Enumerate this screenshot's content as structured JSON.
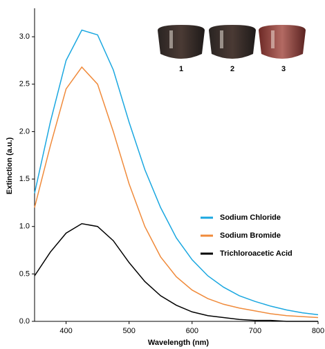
{
  "chart_data": {
    "type": "line",
    "xlabel": "Wavelength (nm)",
    "ylabel": "Extinction (a.u.)",
    "x": [
      350,
      375,
      400,
      425,
      450,
      475,
      500,
      525,
      550,
      575,
      600,
      625,
      650,
      675,
      700,
      725,
      750,
      775,
      800
    ],
    "series": [
      {
        "name": "Sodium Chloride",
        "color": "#1aa7e0",
        "values": [
          1.35,
          2.1,
          2.75,
          3.07,
          3.02,
          2.65,
          2.1,
          1.6,
          1.2,
          0.88,
          0.65,
          0.48,
          0.36,
          0.27,
          0.21,
          0.16,
          0.12,
          0.09,
          0.07
        ]
      },
      {
        "name": "Sodium Bromide",
        "color": "#f08a3a",
        "values": [
          1.2,
          1.85,
          2.45,
          2.68,
          2.5,
          2.0,
          1.45,
          1.0,
          0.68,
          0.47,
          0.33,
          0.24,
          0.18,
          0.14,
          0.11,
          0.08,
          0.06,
          0.05,
          0.04
        ]
      },
      {
        "name": "Trichloroacetic Acid",
        "color": "#000000",
        "values": [
          0.48,
          0.73,
          0.93,
          1.03,
          1.0,
          0.85,
          0.62,
          0.42,
          0.27,
          0.17,
          0.1,
          0.06,
          0.04,
          0.02,
          0.01,
          0.01,
          0,
          0,
          0
        ]
      }
    ],
    "xlim": [
      350,
      800
    ],
    "xticks": [
      400,
      500,
      600,
      700,
      800
    ],
    "ylim": [
      0,
      3.3
    ],
    "yticks": [
      {
        "value": 0,
        "label": "0.0"
      },
      0.5,
      {
        "value": 1,
        "label": "1.0"
      },
      1.5,
      {
        "value": 2,
        "label": "2.0"
      },
      2.5,
      {
        "value": 3,
        "label": "3.0"
      }
    ],
    "inset_labels": [
      "1",
      "2",
      "3"
    ]
  }
}
